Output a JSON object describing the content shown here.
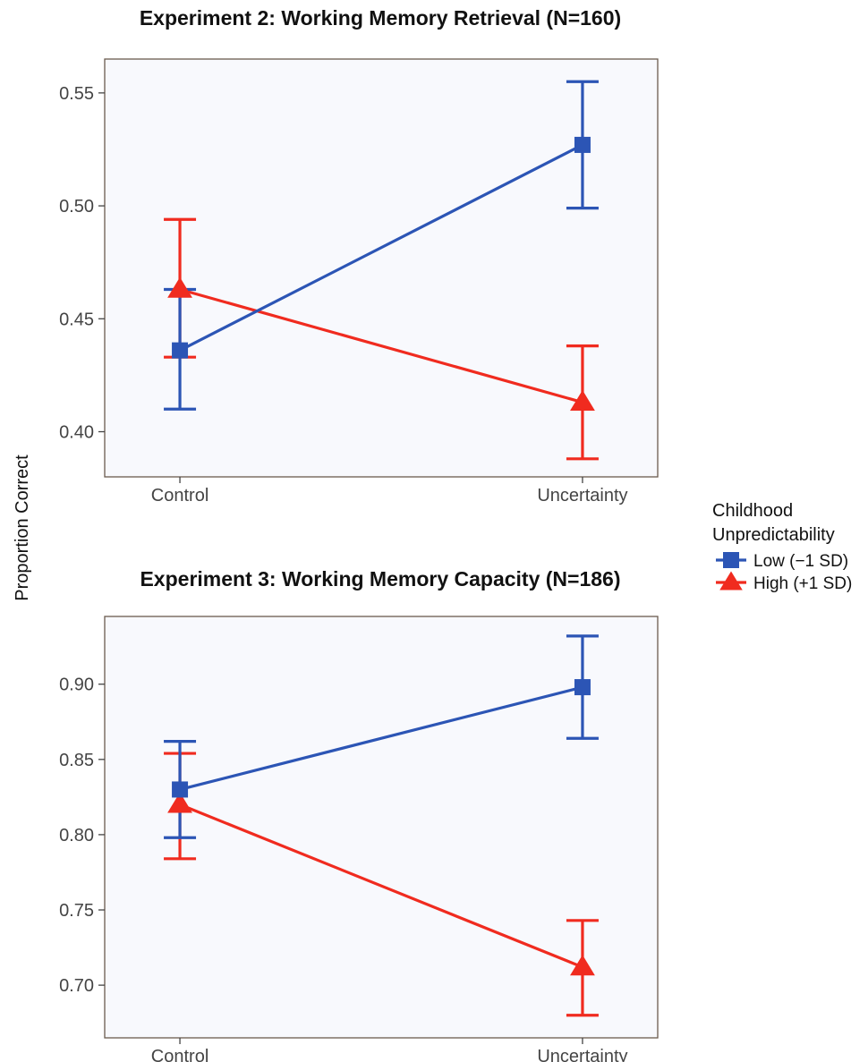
{
  "figure": {
    "ylabel": "Proportion Correct",
    "legend": {
      "title_lines": [
        "Childhood",
        "Unpredictability"
      ],
      "placement": "right",
      "entries": [
        {
          "label": "Low (−1 SD)",
          "color": "#2C55B5",
          "marker": "square"
        },
        {
          "label": "High (+1 SD)",
          "color": "#F02B1F",
          "marker": "triangle"
        }
      ]
    }
  },
  "chart_data": [
    {
      "type": "line",
      "title": "Experiment 2: Working Memory Retrieval (N=160)",
      "xlabel": "",
      "ylabel": "Proportion Correct",
      "categories": [
        "Control",
        "Uncertainty"
      ],
      "ylim": [
        0.38,
        0.565
      ],
      "yticks": [
        0.4,
        0.45,
        0.5,
        0.55
      ],
      "yticklabels": [
        "0.40",
        "0.45",
        "0.50",
        "0.55"
      ],
      "grid": false,
      "series": [
        {
          "name": "Low (−1 SD)",
          "color": "#2C55B5",
          "marker": "square",
          "values": [
            0.436,
            0.527
          ],
          "lower": [
            0.41,
            0.499
          ],
          "upper": [
            0.463,
            0.555
          ]
        },
        {
          "name": "High (+1 SD)",
          "color": "#F02B1F",
          "marker": "triangle",
          "values": [
            0.463,
            0.413
          ],
          "lower": [
            0.433,
            0.388
          ],
          "upper": [
            0.494,
            0.438
          ]
        }
      ]
    },
    {
      "type": "line",
      "title": "Experiment 3: Working Memory Capacity (N=186)",
      "xlabel": "",
      "ylabel": "Proportion Correct",
      "categories": [
        "Control",
        "Uncertainty"
      ],
      "ylim": [
        0.665,
        0.945
      ],
      "yticks": [
        0.7,
        0.75,
        0.8,
        0.85,
        0.9
      ],
      "yticklabels": [
        "0.70",
        "0.75",
        "0.80",
        "0.85",
        "0.90"
      ],
      "grid": false,
      "series": [
        {
          "name": "Low (−1 SD)",
          "color": "#2C55B5",
          "marker": "square",
          "values": [
            0.83,
            0.898
          ],
          "lower": [
            0.798,
            0.864
          ],
          "upper": [
            0.862,
            0.932
          ]
        },
        {
          "name": "High (+1 SD)",
          "color": "#F02B1F",
          "marker": "triangle",
          "values": [
            0.82,
            0.712
          ],
          "lower": [
            0.784,
            0.68
          ],
          "upper": [
            0.854,
            0.743
          ]
        }
      ]
    }
  ]
}
